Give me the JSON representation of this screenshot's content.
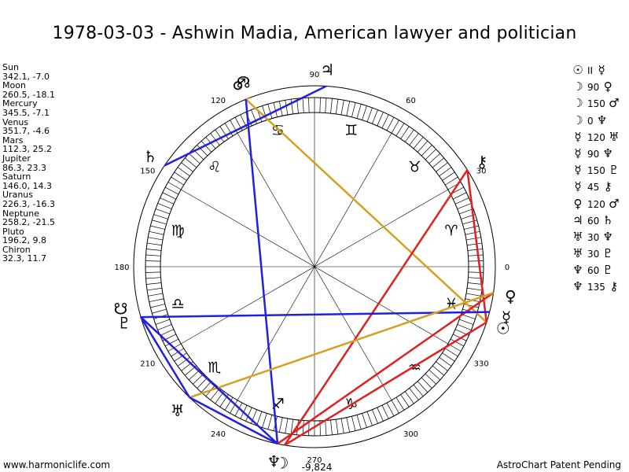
{
  "title": "1978-03-03 - Ashwin Madia, American lawyer and politician",
  "planets": [
    {
      "name": "Sun",
      "values": "342.1, -7.0"
    },
    {
      "name": "Moon",
      "values": "260.5, -18.1"
    },
    {
      "name": "Mercury",
      "values": "345.5, -7.1"
    },
    {
      "name": "Venus",
      "values": "351.7, -4.6"
    },
    {
      "name": "Mars",
      "values": "112.3, 25.2"
    },
    {
      "name": "Jupiter",
      "values": "86.3, 23.3"
    },
    {
      "name": "Saturn",
      "values": "146.0, 14.3"
    },
    {
      "name": "Uranus",
      "values": "226.3, -16.3"
    },
    {
      "name": "Neptune",
      "values": "258.2, -21.5"
    },
    {
      "name": "Pluto",
      "values": "196.2, 9.8"
    },
    {
      "name": "Chiron",
      "values": "32.3, 11.7"
    }
  ],
  "aspects": [
    {
      "p1": "sun-icon",
      "num": "II",
      "p2": "mercury-icon"
    },
    {
      "p1": "moon-icon",
      "num": "90",
      "p2": "venus-icon"
    },
    {
      "p1": "moon-icon",
      "num": "150",
      "p2": "mars-icon"
    },
    {
      "p1": "moon-icon",
      "num": "0",
      "p2": "neptune-icon"
    },
    {
      "p1": "mercury-icon",
      "num": "120",
      "p2": "uranus-icon"
    },
    {
      "p1": "mercury-icon",
      "num": "90",
      "p2": "neptune-icon"
    },
    {
      "p1": "mercury-icon",
      "num": "150",
      "p2": "pluto-icon"
    },
    {
      "p1": "mercury-icon",
      "num": "45",
      "p2": "chiron-icon"
    },
    {
      "p1": "venus-icon",
      "num": "120",
      "p2": "mars-icon"
    },
    {
      "p1": "jupiter-icon",
      "num": "60",
      "p2": "saturn-icon"
    },
    {
      "p1": "uranus-icon",
      "num": "30",
      "p2": "neptune-icon"
    },
    {
      "p1": "uranus-icon",
      "num": "30",
      "p2": "pluto-icon"
    },
    {
      "p1": "neptune-icon",
      "num": "60",
      "p2": "pluto-icon"
    },
    {
      "p1": "neptune-icon",
      "num": "135",
      "p2": "chiron-icon"
    }
  ],
  "chart_labels": {
    "degrees": [
      {
        "deg": 0,
        "text": "0"
      },
      {
        "deg": 30,
        "text": "30"
      },
      {
        "deg": 60,
        "text": "60"
      },
      {
        "deg": 90,
        "text": "90"
      },
      {
        "deg": 120,
        "text": "120"
      },
      {
        "deg": 150,
        "text": "150"
      },
      {
        "deg": 180,
        "text": "180"
      },
      {
        "deg": 210,
        "text": "210"
      },
      {
        "deg": 240,
        "text": "240"
      },
      {
        "deg": 270,
        "text": "270"
      },
      {
        "deg": 300,
        "text": "300"
      },
      {
        "deg": 330,
        "text": "330"
      }
    ],
    "bottom_value": "-9,824"
  },
  "chart_bodies": [
    {
      "name": "sun-icon",
      "glyph": "☉",
      "lon": 342.1
    },
    {
      "name": "moon-icon",
      "glyph": "☽",
      "lon": 260.5
    },
    {
      "name": "mercury-icon",
      "glyph": "☿",
      "lon": 345.5
    },
    {
      "name": "venus-icon",
      "glyph": "♀",
      "lon": 351.7
    },
    {
      "name": "mars-icon",
      "glyph": "♂",
      "lon": 112.3
    },
    {
      "name": "jupiter-icon",
      "glyph": "♃",
      "lon": 86.3
    },
    {
      "name": "saturn-icon",
      "glyph": "♄",
      "lon": 146.0
    },
    {
      "name": "uranus-icon",
      "glyph": "♅",
      "lon": 226.3
    },
    {
      "name": "neptune-icon",
      "glyph": "♆",
      "lon": 258.2
    },
    {
      "name": "pluto-icon",
      "glyph": "♇",
      "lon": 196.2
    },
    {
      "name": "chiron-icon",
      "glyph": "⚷",
      "lon": 32.3
    },
    {
      "name": "north-node-icon",
      "glyph": "☊",
      "lon": 111
    },
    {
      "name": "south-node-icon",
      "glyph": "☋",
      "lon": 192
    }
  ],
  "zodiac_signs": [
    {
      "name": "aries-icon",
      "glyph": "♈"
    },
    {
      "name": "taurus-icon",
      "glyph": "♉"
    },
    {
      "name": "gemini-icon",
      "glyph": "♊"
    },
    {
      "name": "cancer-icon",
      "glyph": "♋"
    },
    {
      "name": "leo-icon",
      "glyph": "♌"
    },
    {
      "name": "virgo-icon",
      "glyph": "♍"
    },
    {
      "name": "libra-icon",
      "glyph": "♎"
    },
    {
      "name": "scorpio-icon",
      "glyph": "♏"
    },
    {
      "name": "sagittarius-icon",
      "glyph": "♐"
    },
    {
      "name": "capricorn-icon",
      "glyph": "♑"
    },
    {
      "name": "aquarius-icon",
      "glyph": "♒"
    },
    {
      "name": "pisces-icon",
      "glyph": "♓"
    }
  ],
  "aspect_lines": [
    {
      "a": "mars-icon",
      "b": "north-node-icon",
      "color": "#d4a020"
    },
    {
      "a": "mars-icon",
      "b": "sun-icon",
      "color": "#d4a020"
    },
    {
      "a": "jupiter-icon",
      "b": "saturn-icon",
      "color": "#2020e0"
    },
    {
      "a": "mars-icon",
      "b": "neptune-icon",
      "color": "#2020e0"
    },
    {
      "a": "moon-icon",
      "b": "chiron-icon",
      "color": "#e02020"
    },
    {
      "a": "chiron-icon",
      "b": "sun-icon",
      "color": "#e02020"
    },
    {
      "a": "sun-icon",
      "b": "moon-icon",
      "color": "#e02020"
    },
    {
      "a": "venus-icon",
      "b": "neptune-icon",
      "color": "#e02020"
    },
    {
      "a": "mercury-icon",
      "b": "pluto-icon",
      "color": "#2020e0"
    },
    {
      "a": "venus-icon",
      "b": "uranus-icon",
      "color": "#d4a020"
    },
    {
      "a": "pluto-icon",
      "b": "uranus-icon",
      "color": "#2020e0"
    },
    {
      "a": "pluto-icon",
      "b": "neptune-icon",
      "color": "#2020e0"
    },
    {
      "a": "uranus-icon",
      "b": "neptune-icon",
      "color": "#2020e0"
    }
  ],
  "footer": {
    "left": "www.harmoniclife.com",
    "right": "AstroChart Patent Pending"
  }
}
